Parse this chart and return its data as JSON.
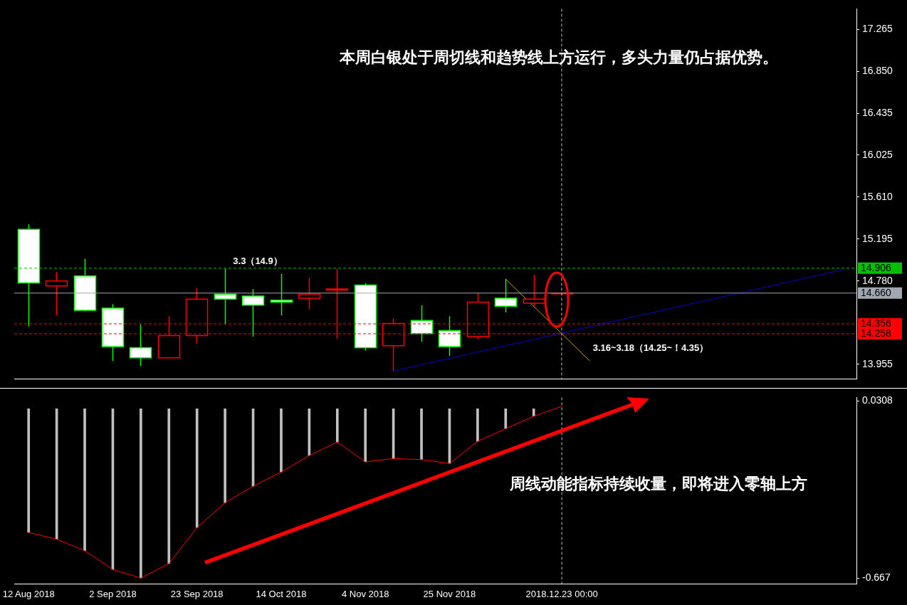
{
  "chart_data": [
    {
      "type": "candlestick",
      "title": "本周白银处于周切线和趋势线上方运行，多头力量仍占据优势。",
      "categories": [
        "12 Aug 2018",
        null,
        null,
        "2 Sep 2018",
        null,
        null,
        "23 Sep 2018",
        null,
        null,
        "14 Oct 2018",
        null,
        null,
        "4 Nov 2018",
        null,
        null,
        "25 Nov 2018",
        null,
        null,
        null,
        "2018.12.23 00:00",
        null,
        null,
        null,
        null,
        null,
        null,
        null,
        null,
        null,
        null
      ],
      "ohlc": [
        [
          15.29,
          15.34,
          14.33,
          14.76
        ],
        [
          14.73,
          14.87,
          14.44,
          14.78
        ],
        [
          14.83,
          15.0,
          14.48,
          14.49
        ],
        [
          14.51,
          14.55,
          13.99,
          14.13
        ],
        [
          14.12,
          14.35,
          13.94,
          14.02
        ],
        [
          14.02,
          14.43,
          14.02,
          14.24
        ],
        [
          14.24,
          14.71,
          14.16,
          14.6
        ],
        [
          14.65,
          14.9,
          14.35,
          14.6
        ],
        [
          14.63,
          14.7,
          14.23,
          14.54
        ],
        [
          14.59,
          14.85,
          14.44,
          14.57
        ],
        [
          14.61,
          14.81,
          14.5,
          14.65
        ],
        [
          14.69,
          14.9,
          14.21,
          14.7
        ],
        [
          14.74,
          14.76,
          14.09,
          14.12
        ],
        [
          14.14,
          14.41,
          13.89,
          14.36
        ],
        [
          14.39,
          14.54,
          14.18,
          14.26
        ],
        [
          14.29,
          14.43,
          14.04,
          14.13
        ],
        [
          14.23,
          14.66,
          14.2,
          14.57
        ],
        [
          14.61,
          14.8,
          14.47,
          14.53
        ],
        [
          14.56,
          14.84,
          14.53,
          14.6
        ],
        [
          14.66,
          14.66,
          14.66,
          14.66
        ],
        null,
        null,
        null,
        null,
        null,
        null,
        null,
        null,
        null,
        null
      ],
      "colors": [
        "#ffffff",
        "#000000",
        "#ffffff",
        "#ffffff",
        "#ffffff",
        "#000000",
        "#000000",
        "#ffffff",
        "#ffffff",
        "#ffffff",
        "#000000",
        "#000000",
        "#ffffff",
        "#000000",
        "#ffffff",
        "#ffffff",
        "#000000",
        "#ffffff",
        "#000000",
        "#000000",
        null,
        null,
        null,
        null,
        null,
        null,
        null,
        null,
        null,
        null
      ],
      "series": [
        {
          "type": "line",
          "color": "#0000cc",
          "values": [
            null,
            null,
            null,
            null,
            null,
            null,
            null,
            null,
            null,
            null,
            null,
            null,
            null,
            13.89,
            null,
            null,
            null,
            null,
            null,
            null,
            null,
            null,
            null,
            null,
            null,
            null,
            null,
            null,
            null,
            14.89
          ]
        },
        {
          "type": "line",
          "color": "#c8a000",
          "values": [
            null,
            null,
            null,
            null,
            null,
            null,
            null,
            null,
            null,
            null,
            null,
            null,
            null,
            null,
            null,
            null,
            null,
            14.8,
            null,
            null,
            13.99,
            null,
            null,
            null,
            null,
            null,
            null,
            null,
            null,
            null
          ]
        }
      ],
      "ylim": [
        13.81,
        17.47
      ],
      "yticks": [
        17.265,
        {
          "value": 16.85,
          "label": "16.850"
        },
        16.435,
        16.025,
        {
          "value": 15.61,
          "label": "15.610"
        },
        15.195,
        {
          "value": 14.78,
          "label": "14.780"
        },
        13.955
      ],
      "ref_lines": [
        {
          "axis": "y",
          "value": 14.906,
          "label": "14.906",
          "color": "#00c000",
          "line_style": "dashed"
        },
        {
          "axis": "y",
          "value": 14.66,
          "label": "14.660",
          "color": "#a0a8b0",
          "line_style": "solid"
        },
        {
          "axis": "y",
          "value": 14.356,
          "label": "14.356",
          "color": "#ff0000",
          "line_style": "dashed"
        },
        {
          "axis": "y",
          "value": 14.258,
          "label": "14.258",
          "color": "#ff0000",
          "line_style": "dashed"
        },
        {
          "axis": "x",
          "value": "2018.12.23 00:00",
          "color": "#c0c0c0",
          "line_style": "dashed"
        }
      ],
      "annotations": [
        "3.3（14.9）",
        "3.16~3.18（14.25~！4.35）"
      ],
      "tick_labels": "y",
      "grid": false,
      "legend": false
    },
    {
      "type": "bar",
      "categories": [
        "12 Aug 2018",
        null,
        null,
        "2 Sep 2018",
        null,
        null,
        "23 Sep 2018",
        null,
        null,
        "14 Oct 2018",
        null,
        null,
        "4 Nov 2018",
        null,
        null,
        "25 Nov 2018",
        null,
        null,
        null,
        "2018.12.23 00:00",
        null,
        null,
        null,
        null,
        null,
        null,
        null,
        null,
        null,
        null
      ],
      "series": [
        {
          "type": "bar",
          "color": "#c0c0c0",
          "values": [
            -0.487,
            -0.514,
            -0.559,
            -0.633,
            -0.667,
            -0.61,
            -0.468,
            -0.37,
            -0.305,
            -0.249,
            -0.184,
            -0.131,
            -0.209,
            -0.196,
            -0.2,
            -0.215,
            -0.128,
            -0.078,
            -0.029,
            null,
            null,
            null,
            null,
            null,
            null,
            null,
            null,
            null,
            null,
            null
          ]
        },
        {
          "type": "line",
          "color": "#ff0000",
          "values": [
            -0.487,
            -0.514,
            -0.559,
            -0.633,
            -0.667,
            -0.61,
            -0.468,
            -0.37,
            -0.305,
            -0.249,
            -0.184,
            -0.131,
            -0.209,
            -0.196,
            -0.2,
            -0.215,
            -0.128,
            -0.078,
            -0.029,
            0.01,
            null,
            null,
            null,
            null,
            null,
            null,
            null,
            null,
            null,
            null
          ]
        }
      ],
      "ylim": [
        -0.69,
        0.045
      ],
      "yticks": [
        0.0308,
        -0.667
      ],
      "ref_lines": [
        {
          "axis": "x",
          "value": "2018.12.23 00:00",
          "color": "#c0c0c0",
          "line_style": "dashed"
        }
      ],
      "annotations": [
        "周线动能指标持续收量，即将进入零轴上方"
      ],
      "grid": false,
      "legend": false
    }
  ]
}
